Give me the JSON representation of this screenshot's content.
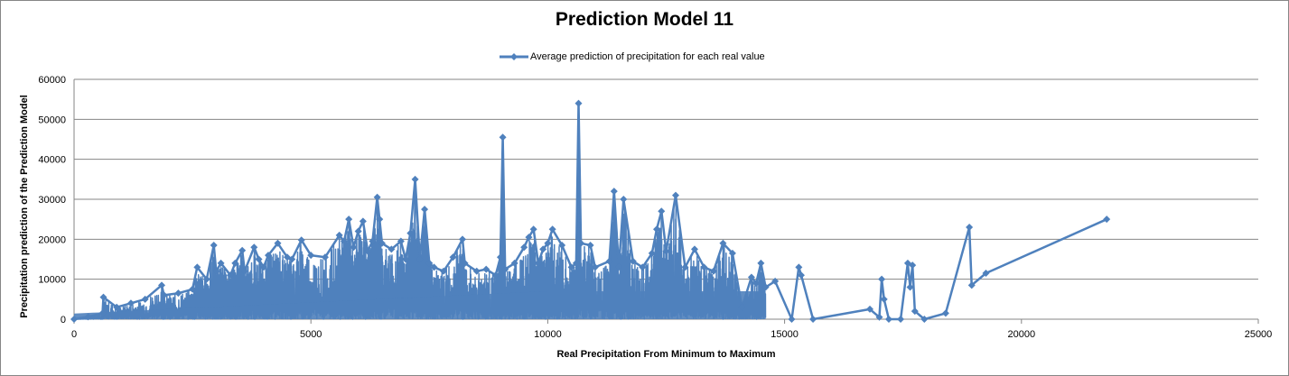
{
  "chart_data": {
    "type": "line",
    "title": "Prediction Model 11",
    "xlabel": "Real Precipitation From Minimum to Maximum",
    "ylabel": "Precipitation prediction of the Prediction Model",
    "xlim": [
      0,
      25000
    ],
    "ylim": [
      0,
      60000
    ],
    "x_ticks": [
      0,
      5000,
      10000,
      15000,
      20000,
      25000
    ],
    "y_ticks": [
      0,
      10000,
      20000,
      30000,
      40000,
      50000,
      60000
    ],
    "grid": "horizontal",
    "legend_position": "top",
    "series": [
      {
        "name": "Average prediction of precipitation for each real value",
        "color": "#4F81BD",
        "marker": "diamond",
        "dense_region_max_x": 14600,
        "x": [
          0,
          300,
          600,
          620,
          900,
          1200,
          1500,
          1850,
          1900,
          2200,
          2500,
          2600,
          2800,
          2950,
          3000,
          3100,
          3300,
          3400,
          3550,
          3600,
          3800,
          3900,
          4000,
          4100,
          4300,
          4500,
          4600,
          4800,
          5000,
          5300,
          5600,
          5700,
          5800,
          5900,
          6000,
          6100,
          6200,
          6300,
          6400,
          6450,
          6500,
          6700,
          6900,
          7000,
          7100,
          7200,
          7300,
          7400,
          7500,
          7600,
          7800,
          8000,
          8200,
          8250,
          8500,
          8700,
          8900,
          9000,
          9050,
          9100,
          9300,
          9500,
          9600,
          9700,
          9800,
          9900,
          10000,
          10100,
          10300,
          10500,
          10600,
          10650,
          10700,
          10900,
          11000,
          11300,
          11400,
          11500,
          11600,
          11800,
          12000,
          12200,
          12300,
          12400,
          12500,
          12700,
          12900,
          13100,
          13300,
          13500,
          13700,
          13900,
          14100,
          14300,
          14400,
          14500,
          14600,
          14800,
          15150,
          15300,
          15350,
          15600,
          16800,
          17000,
          17050,
          17100,
          17200,
          17450,
          17600,
          17650,
          17700,
          17750,
          17950,
          18400,
          18900,
          18950,
          19250,
          21800
        ],
        "y": [
          0,
          600,
          1500,
          5500,
          3000,
          4000,
          5000,
          8500,
          6000,
          6500,
          7500,
          13000,
          10000,
          18500,
          12000,
          14000,
          11000,
          14000,
          17200,
          12000,
          18000,
          15000,
          13000,
          16000,
          19000,
          15500,
          15000,
          19800,
          16000,
          15500,
          21000,
          19500,
          25000,
          18000,
          22000,
          24500,
          17000,
          19500,
          30500,
          25000,
          19000,
          17500,
          19500,
          15000,
          21500,
          35000,
          15000,
          27500,
          14000,
          13000,
          12000,
          15500,
          20000,
          14000,
          12000,
          12500,
          11000,
          15500,
          45500,
          12500,
          14000,
          18000,
          20500,
          22500,
          14000,
          17500,
          19000,
          22500,
          18500,
          13000,
          14000,
          54000,
          19000,
          18500,
          13000,
          14500,
          32000,
          13000,
          30000,
          14500,
          13000,
          16500,
          22500,
          27000,
          17000,
          31000,
          13000,
          17500,
          13000,
          12000,
          19000,
          16500,
          3000,
          10500,
          9000,
          14000,
          8000,
          9500,
          0,
          13000,
          11000,
          0,
          2500,
          500,
          10000,
          5000,
          0,
          0,
          14000,
          8000,
          13500,
          2000,
          0,
          1500,
          23000,
          8500,
          11500,
          25000
        ]
      }
    ]
  }
}
